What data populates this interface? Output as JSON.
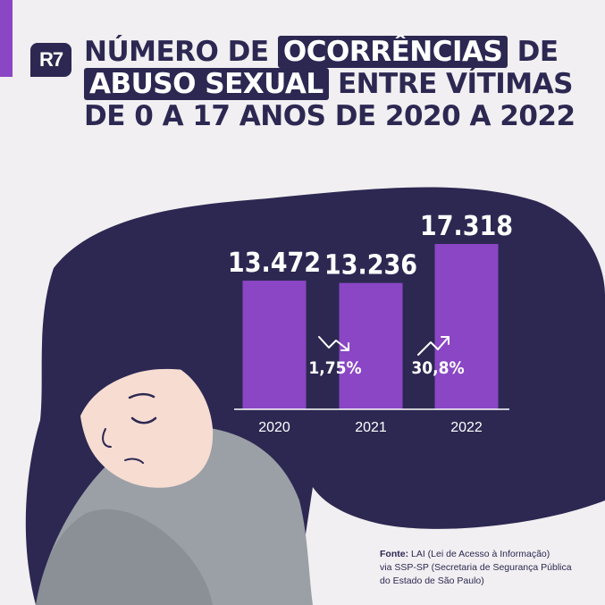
{
  "brand": {
    "logo": "R7"
  },
  "title": {
    "pre": "NÚMERO DE",
    "hl1": "OCORRÊNCIAS",
    "mid": "DE",
    "hl2": "ABUSO SEXUAL",
    "post": "ENTRE VÍTIMAS DE 0 A 17 ANOS DE 2020 A 2022"
  },
  "chart_data": {
    "type": "bar",
    "categories": [
      "2020",
      "2021",
      "2022"
    ],
    "values": [
      13472,
      13236,
      17318
    ],
    "value_labels": [
      "13.472",
      "13.236",
      "17.318"
    ],
    "changes": [
      {
        "between": [
          "2020",
          "2021"
        ],
        "label": "1,75%",
        "direction": "down"
      },
      {
        "between": [
          "2021",
          "2022"
        ],
        "label": "30,8%",
        "direction": "up"
      }
    ],
    "bar_color": "#8a46c4",
    "ylim": [
      0,
      17318
    ],
    "grid": false,
    "legend": "none"
  },
  "source": {
    "label": "Fonte:",
    "text": "LAI (Lei de Acesso à Informação)",
    "line2": "via SSP-SP (Secretaria de Segurança Pública",
    "line3": "do Estado de São Paulo)"
  },
  "colors": {
    "navy": "#2c2852",
    "purple": "#8a46c4",
    "background": "#f1eff1",
    "skin": "#f7dcd2",
    "sweater": "#9aa0a6"
  }
}
